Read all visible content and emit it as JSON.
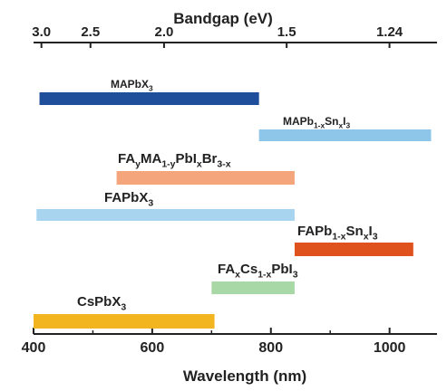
{
  "chart_data": {
    "type": "bar",
    "orientation": "horizontal-range",
    "top_axis": {
      "title": "Bandgap (eV)",
      "ticks": [
        {
          "value": 3.0,
          "label": "3.0"
        },
        {
          "value": 2.5,
          "label": "2.5"
        },
        {
          "value": 2.0,
          "label": "2.0"
        },
        {
          "value": 1.5,
          "label": "1.5"
        },
        {
          "value": 1.24,
          "label": "1.24"
        }
      ]
    },
    "bottom_axis": {
      "title": "Wavelength (nm)",
      "range": [
        400,
        1080
      ],
      "ticks": [
        {
          "value": 400,
          "label": "400"
        },
        {
          "value": 600,
          "label": "600"
        },
        {
          "value": 800,
          "label": "800"
        },
        {
          "value": 1000,
          "label": "1000"
        }
      ],
      "minor_ticks": [
        500,
        700,
        900
      ]
    },
    "bars": [
      {
        "name": "MAPbX3",
        "label_parts": [
          [
            "MAPbX",
            "n"
          ],
          [
            "3",
            "sub"
          ]
        ],
        "start": 410,
        "end": 780,
        "color": "#1f4e9a"
      },
      {
        "name": "MAPb1-xSnxI3",
        "label_parts": [
          [
            "MAPb",
            "n"
          ],
          [
            "1-x",
            "sub"
          ],
          [
            "Sn",
            "n"
          ],
          [
            "x",
            "sub"
          ],
          [
            "I",
            "n"
          ],
          [
            "3",
            "sub"
          ]
        ],
        "start": 780,
        "end": 1070,
        "color": "#8ec6ea"
      },
      {
        "name": "FAyMA1-yPbIxBr3-x",
        "label_parts": [
          [
            "FA",
            "n"
          ],
          [
            "y",
            "sub"
          ],
          [
            "MA",
            "n"
          ],
          [
            "1-y",
            "sub"
          ],
          [
            "PbI",
            "n"
          ],
          [
            "x",
            "sub"
          ],
          [
            "Br",
            "n"
          ],
          [
            "3-x",
            "sub"
          ]
        ],
        "start": 540,
        "end": 840,
        "color": "#f4a57c"
      },
      {
        "name": "FAPbX3",
        "label_parts": [
          [
            "FAPbX",
            "n"
          ],
          [
            "3",
            "sub"
          ]
        ],
        "start": 405,
        "end": 840,
        "color": "#a9d4f0"
      },
      {
        "name": "FAPb1-xSnxI3",
        "label_parts": [
          [
            "FAPb",
            "n"
          ],
          [
            "1-x",
            "sub"
          ],
          [
            "Sn",
            "n"
          ],
          [
            "x",
            "sub"
          ],
          [
            "I",
            "n"
          ],
          [
            "3",
            "sub"
          ]
        ],
        "start": 840,
        "end": 1040,
        "color": "#e0521d"
      },
      {
        "name": "FAxCs1-xPbI3",
        "label_parts": [
          [
            "FA",
            "n"
          ],
          [
            "x",
            "sub"
          ],
          [
            "Cs",
            "n"
          ],
          [
            "1-x",
            "sub"
          ],
          [
            "PbI",
            "n"
          ],
          [
            "3",
            "sub"
          ]
        ],
        "start": 700,
        "end": 840,
        "color": "#a7d8a5"
      },
      {
        "name": "CsPbX3",
        "label_parts": [
          [
            "CsPbX",
            "n"
          ],
          [
            "3",
            "sub"
          ]
        ],
        "start": 400,
        "end": 705,
        "color": "#f3b51f"
      }
    ]
  }
}
